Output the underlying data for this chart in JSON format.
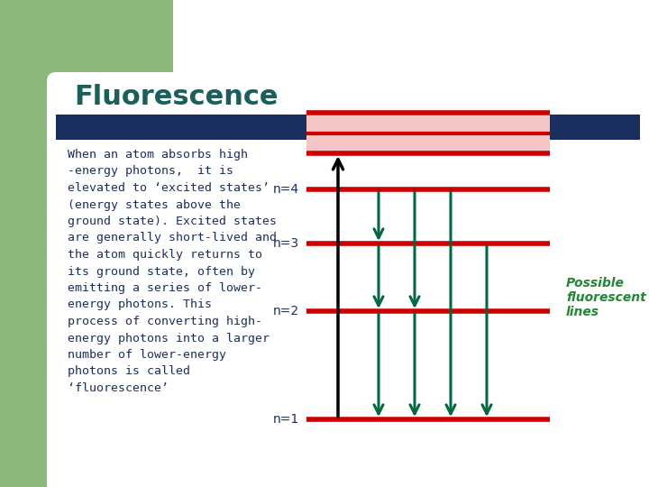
{
  "title": "Fluorescence",
  "title_color": "#1a5f5a",
  "title_fontsize": 22,
  "bg_color": "#ffffff",
  "green_color": "#8ab87a",
  "navy_color": "#1a2f5e",
  "body_text": "When an atom absorbs high\n-energy photons,  it is\nelevated to ‘excited states’\n(energy states above the\nground state). Excited states\nare generally short-lived and\nthe atom quickly returns to\nits ground state, often by\nemitting a series of lower-\nenergy photons. This\nprocess of converting high-\nenergy photons into a larger\nnumber of lower-energy\nphotons is called\n‘fluorescence’",
  "body_text_color": "#1a2f5e",
  "body_fontsize": 9.5,
  "line_color": "#cc0000",
  "line_width": 4.0,
  "excited_fill_color": "#f5c5c5",
  "arrow_up_color": "#000000",
  "arrow_down_color": "#006644",
  "possible_lines_label": "Possible\nfluorescent\nlines",
  "possible_lines_color": "#228833"
}
